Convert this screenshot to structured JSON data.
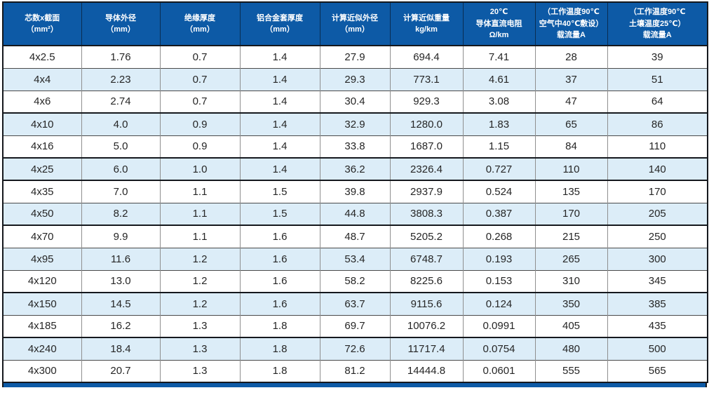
{
  "colors": {
    "header_bg": "#0d5aa6",
    "header_text": "#ffffff",
    "alt_row_bg": "#dcedf8",
    "border_dark": "#15181d",
    "grid_gray": "#8f8f8f"
  },
  "table": {
    "columns": [
      {
        "lines": [
          "芯数x截面",
          "（mm²）"
        ]
      },
      {
        "lines": [
          "导体外径",
          "（mm）"
        ]
      },
      {
        "lines": [
          "绝缘厚度",
          "（mm）"
        ]
      },
      {
        "lines": [
          "铝合金套厚度",
          "（mm）"
        ]
      },
      {
        "lines": [
          "计算近似外径",
          "（mm）"
        ]
      },
      {
        "lines": [
          "计算近似重量",
          "kg/km"
        ]
      },
      {
        "lines": [
          "20℃",
          "导体直流电阻",
          "Ω/km"
        ]
      },
      {
        "lines": [
          "（工作温度90℃",
          "空气中40℃敷设）",
          "载流量A"
        ]
      },
      {
        "lines": [
          "（工作温度90℃",
          "土壤温度25℃）",
          "载流量A"
        ]
      }
    ],
    "rows": [
      [
        "4x2.5",
        "1.76",
        "0.7",
        "1.4",
        "27.9",
        "694.4",
        "7.41",
        "28",
        "39"
      ],
      [
        "4x4",
        "2.23",
        "0.7",
        "1.4",
        "29.3",
        "773.1",
        "4.61",
        "37",
        "51"
      ],
      [
        "4x6",
        "2.74",
        "0.7",
        "1.4",
        "30.4",
        "929.3",
        "3.08",
        "47",
        "64"
      ],
      [
        "4x10",
        "4.0",
        "0.9",
        "1.4",
        "32.9",
        "1280.0",
        "1.83",
        "65",
        "86"
      ],
      [
        "4x16",
        "5.0",
        "0.9",
        "1.4",
        "33.8",
        "1687.0",
        "1.15",
        "84",
        "110"
      ],
      [
        "4x25",
        "6.0",
        "1.0",
        "1.4",
        "36.2",
        "2326.4",
        "0.727",
        "110",
        "140"
      ],
      [
        "4x35",
        "7.0",
        "1.1",
        "1.5",
        "39.8",
        "2937.9",
        "0.524",
        "135",
        "170"
      ],
      [
        "4x50",
        "8.2",
        "1.1",
        "1.5",
        "44.8",
        "3808.3",
        "0.387",
        "170",
        "205"
      ],
      [
        "4x70",
        "9.9",
        "1.1",
        "1.6",
        "48.7",
        "5205.2",
        "0.268",
        "215",
        "250"
      ],
      [
        "4x95",
        "11.6",
        "1.2",
        "1.6",
        "53.4",
        "6748.7",
        "0.193",
        "265",
        "300"
      ],
      [
        "4x120",
        "13.0",
        "1.2",
        "1.6",
        "58.2",
        "8225.6",
        "0.153",
        "310",
        "345"
      ],
      [
        "4x150",
        "14.5",
        "1.2",
        "1.6",
        "63.7",
        "9115.6",
        "0.124",
        "350",
        "385"
      ],
      [
        "4x185",
        "16.2",
        "1.3",
        "1.8",
        "69.7",
        "10076.2",
        "0.0991",
        "405",
        "435"
      ],
      [
        "4x240",
        "18.4",
        "1.3",
        "1.8",
        "72.6",
        "11717.4",
        "0.0754",
        "480",
        "500"
      ],
      [
        "4x300",
        "20.7",
        "1.3",
        "1.8",
        "81.2",
        "14444.8",
        "0.0601",
        "555",
        "565"
      ]
    ],
    "thick_top_row_indices": [
      3,
      5,
      6,
      8,
      11,
      13
    ]
  }
}
